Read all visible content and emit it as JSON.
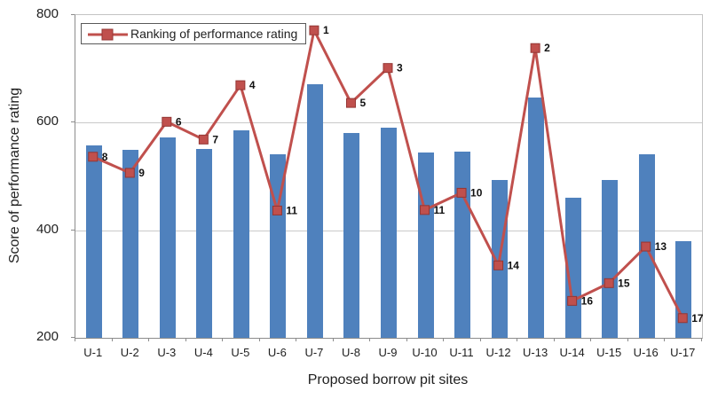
{
  "chart_data": {
    "type": "bar+line",
    "title": "",
    "categories": [
      "U-1",
      "U-2",
      "U-3",
      "U-4",
      "U-5",
      "U-6",
      "U-7",
      "U-8",
      "U-9",
      "U-10",
      "U-11",
      "U-12",
      "U-13",
      "U-14",
      "U-15",
      "U-16",
      "U-17"
    ],
    "series": [
      {
        "name": "Score of performance rating",
        "type": "bar",
        "color": "#4f81bd",
        "values": [
          557,
          550,
          572,
          551,
          586,
          542,
          672,
          581,
          590,
          545,
          546,
          493,
          646,
          460,
          493,
          542,
          380
        ]
      },
      {
        "name": "Ranking of performance rating",
        "type": "line",
        "color": "#c0504d",
        "marker": "square",
        "marker_edge_color": "#943634",
        "values": [
          535,
          505,
          600,
          567,
          668,
          435,
          770,
          635,
          700,
          436,
          468,
          333,
          737,
          267,
          300,
          368,
          235
        ],
        "point_labels": [
          "8",
          "9",
          "6",
          "7",
          "4",
          "11",
          "1",
          "5",
          "3",
          "11",
          "10",
          "14",
          "2",
          "16",
          "15",
          "13",
          "17"
        ]
      }
    ],
    "xlabel": "Proposed borrow pit sites",
    "ylabel": "Score of performance rating",
    "ylim": [
      200,
      800
    ],
    "yticks": [
      800,
      600,
      400,
      200
    ],
    "grid": true,
    "legend_position": "top-left",
    "legend_entries": [
      "Ranking of performance rating"
    ]
  }
}
